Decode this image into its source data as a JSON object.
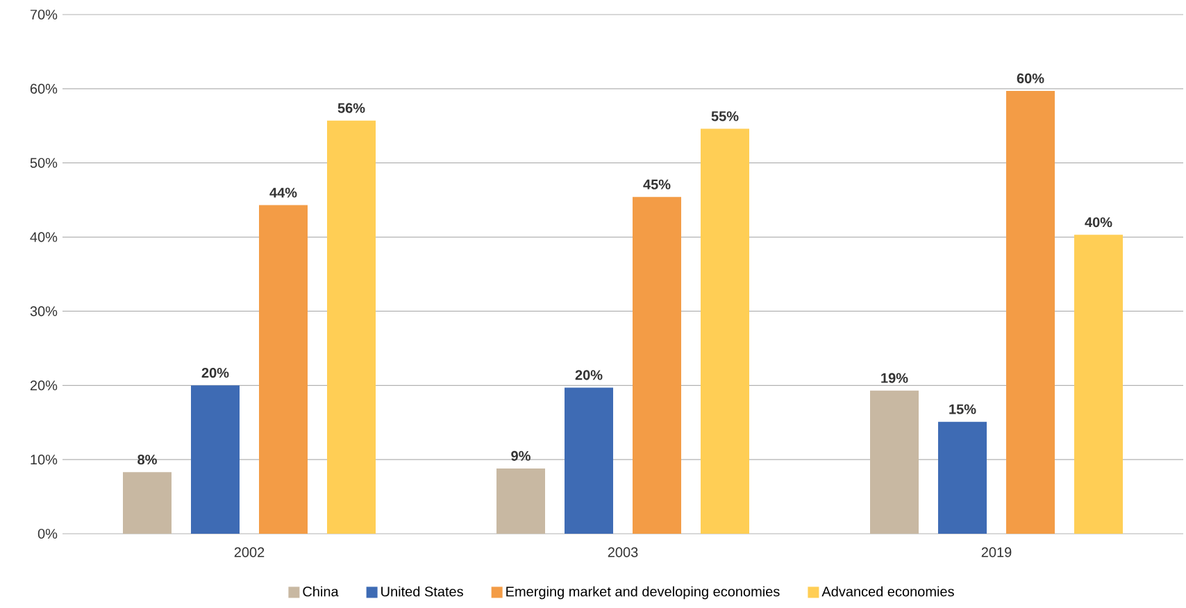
{
  "chart_data": {
    "type": "bar",
    "categories": [
      "2002",
      "2003",
      "2019"
    ],
    "series": [
      {
        "name": "China",
        "color": "#c8b8a2",
        "values": [
          8.3,
          8.8,
          19.3
        ],
        "value_labels": [
          "8%",
          "9%",
          "19%"
        ]
      },
      {
        "name": "United States",
        "color": "#3e6bb4",
        "values": [
          20,
          19.7,
          15.1
        ],
        "value_labels": [
          "20%",
          "20%",
          "15%"
        ]
      },
      {
        "name": "Emerging market and developing economies",
        "color": "#f39c46",
        "values": [
          44.3,
          45.4,
          59.7
        ],
        "value_labels": [
          "44%",
          "45%",
          "60%"
        ]
      },
      {
        "name": "Advanced economies",
        "color": "#ffce55",
        "values": [
          55.7,
          54.6,
          40.3
        ],
        "value_labels": [
          "56%",
          "55%",
          "40%"
        ]
      }
    ],
    "ylim": [
      0,
      70
    ],
    "yticks": [
      {
        "value": 0,
        "label": "0%"
      },
      {
        "value": 10,
        "label": "10%"
      },
      {
        "value": 20,
        "label": "20%"
      },
      {
        "value": 30,
        "label": "30%"
      },
      {
        "value": 40,
        "label": "40%"
      },
      {
        "value": 50,
        "label": "50%"
      },
      {
        "value": 60,
        "label": "60%"
      },
      {
        "value": 70,
        "label": "70%"
      }
    ],
    "grid": "y",
    "legend": "bottom"
  }
}
